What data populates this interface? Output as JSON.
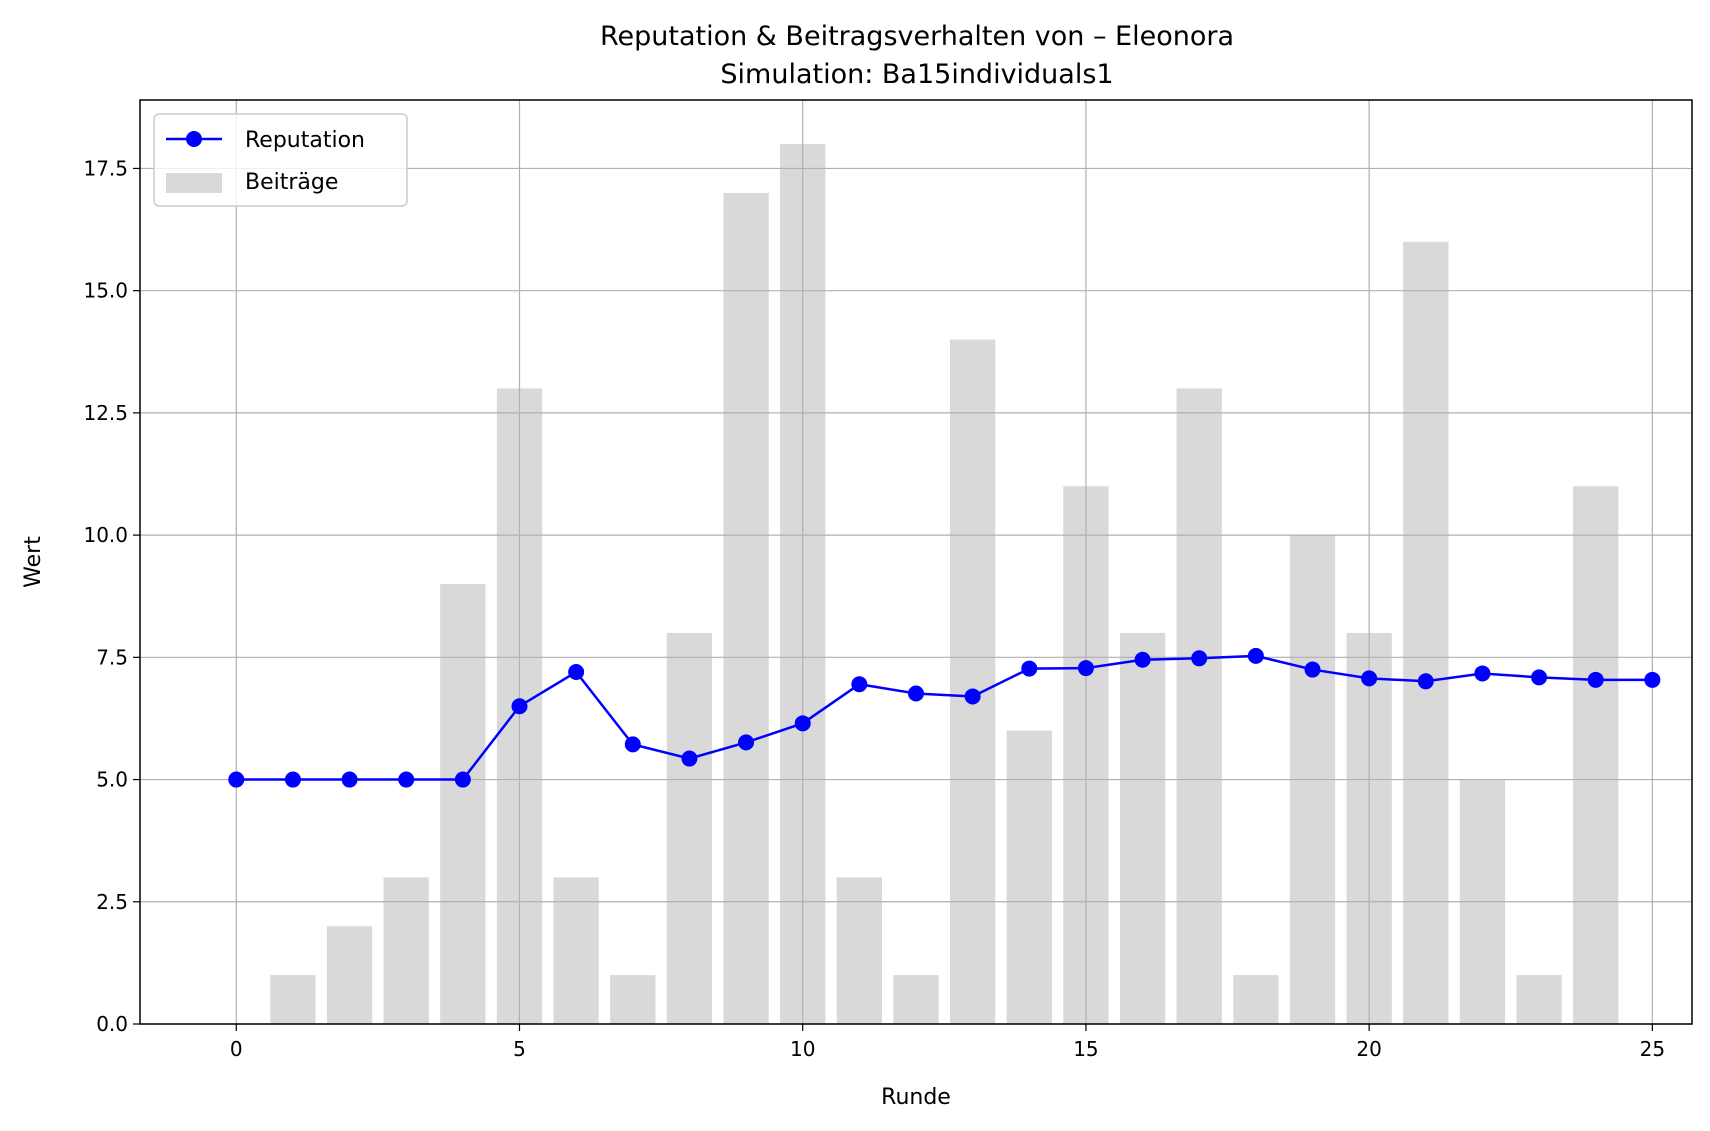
{
  "chart_data": {
    "type": "bar+line",
    "title": "Reputation & Beitragsverhalten von – Eleonora",
    "subtitle": "Simulation: Ba15individuals1",
    "xlabel": "Runde",
    "ylabel": "Wert",
    "xlim": [
      -1.7,
      25.7
    ],
    "ylim": [
      0,
      18.9
    ],
    "xticks": [
      0,
      5,
      10,
      15,
      20,
      25
    ],
    "yticks": [
      0.0,
      2.5,
      5.0,
      7.5,
      10.0,
      12.5,
      15.0,
      17.5
    ],
    "ytick_labels": [
      "0.0",
      "2.5",
      "5.0",
      "7.5",
      "10.0",
      "12.5",
      "15.0",
      "17.5"
    ],
    "grid": true,
    "legend_position": "top-left",
    "x": [
      0,
      1,
      2,
      3,
      4,
      5,
      6,
      7,
      8,
      9,
      10,
      11,
      12,
      13,
      14,
      15,
      16,
      17,
      18,
      19,
      20,
      21,
      22,
      23,
      24,
      25
    ],
    "series": [
      {
        "name": "Reputation",
        "kind": "line",
        "color": "#0000ff",
        "values": [
          5.0,
          5.0,
          5.0,
          5.0,
          5.0,
          6.5,
          7.2,
          5.72,
          5.43,
          5.76,
          6.15,
          6.95,
          6.76,
          6.7,
          7.27,
          7.28,
          7.45,
          7.48,
          7.53,
          7.25,
          7.07,
          7.01,
          7.17,
          7.09,
          7.04,
          7.04
        ]
      },
      {
        "name": "Beiträge",
        "kind": "bar",
        "color": "#d9d9d9",
        "values": [
          0,
          1,
          2,
          3,
          9,
          13,
          3,
          1,
          8,
          17,
          18,
          3,
          1,
          14,
          6,
          11,
          8,
          13,
          1,
          10,
          8,
          16,
          5,
          1,
          11,
          0
        ]
      }
    ]
  }
}
